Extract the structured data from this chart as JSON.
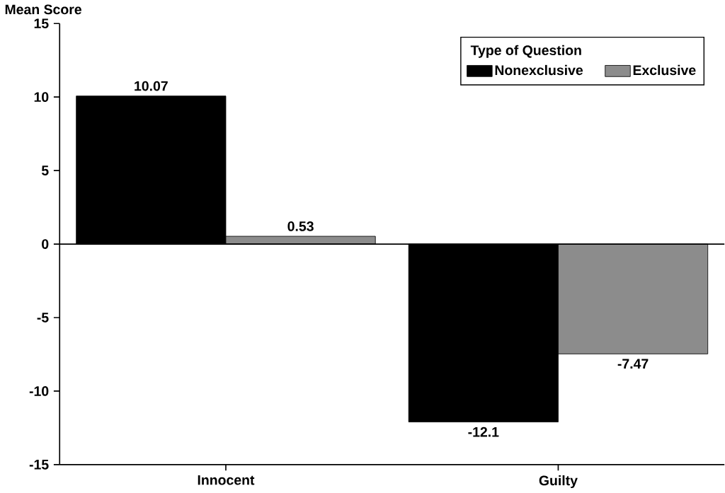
{
  "chart_data": {
    "type": "bar",
    "ylabel": "Mean Score",
    "legend_title": "Type of Question",
    "categories": [
      "Innocent",
      "Guilty"
    ],
    "series": [
      {
        "name": "Nonexclusive",
        "color": "#000000",
        "values": [
          10.07,
          -12.1
        ]
      },
      {
        "name": "Exclusive",
        "color": "#8c8c8c",
        "values": [
          0.53,
          -7.47
        ]
      }
    ],
    "ylim": [
      -15,
      15
    ],
    "yticks": [
      -15,
      -10,
      -5,
      0,
      5,
      10,
      15
    ],
    "ref_lines": [
      {
        "axis": "y",
        "value": 0
      }
    ],
    "data_labels": true,
    "legend": "top right",
    "grid": false
  }
}
